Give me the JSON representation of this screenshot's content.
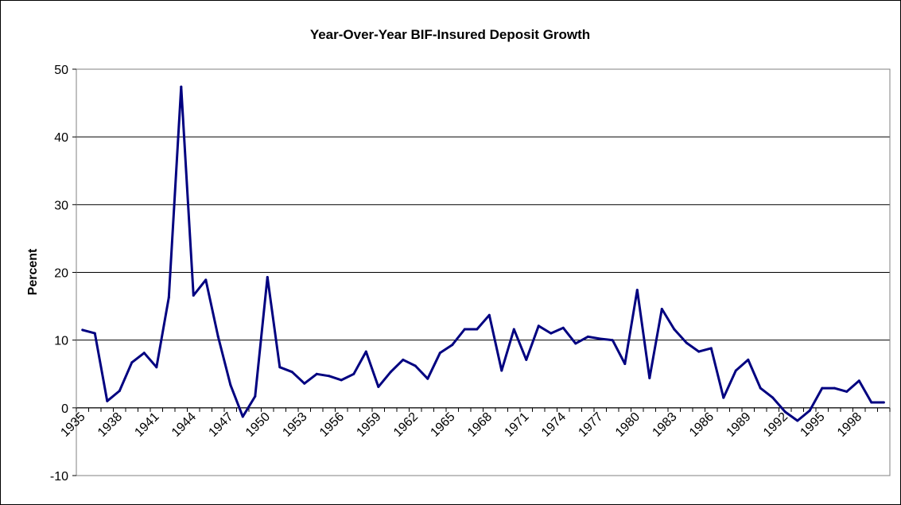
{
  "chart_data": {
    "type": "line",
    "title": "Year-Over-Year BIF-Insured Deposit Growth",
    "xlabel": "",
    "ylabel": "Percent",
    "ylim": [
      -10,
      50
    ],
    "yticks": [
      -10,
      0,
      10,
      20,
      30,
      40,
      50
    ],
    "xtick_labels": [
      "1935",
      "1938",
      "1941",
      "1944",
      "1947",
      "1950",
      "1953",
      "1956",
      "1959",
      "1962",
      "1965",
      "1968",
      "1971",
      "1974",
      "1977",
      "1980",
      "1983",
      "1986",
      "1989",
      "1992",
      "1995",
      "1998"
    ],
    "grid": "horizontal",
    "legend": "none",
    "line_color": "#000080",
    "x": [
      1935,
      1936,
      1937,
      1938,
      1939,
      1940,
      1941,
      1942,
      1943,
      1944,
      1945,
      1946,
      1947,
      1948,
      1949,
      1950,
      1951,
      1952,
      1953,
      1954,
      1955,
      1956,
      1957,
      1958,
      1959,
      1960,
      1961,
      1962,
      1963,
      1964,
      1965,
      1966,
      1967,
      1968,
      1969,
      1970,
      1971,
      1972,
      1973,
      1974,
      1975,
      1976,
      1977,
      1978,
      1979,
      1980,
      1981,
      1982,
      1983,
      1984,
      1985,
      1986,
      1987,
      1988,
      1989,
      1990,
      1991,
      1992,
      1993,
      1994,
      1995,
      1996,
      1997,
      1998,
      1999,
      2000
    ],
    "series": [
      {
        "values": [
          11.5,
          11.0,
          1.0,
          2.5,
          6.7,
          8.1,
          6.0,
          16.3,
          47.4,
          16.6,
          18.9,
          10.5,
          3.4,
          -1.3,
          1.7,
          19.3,
          6.0,
          5.3,
          3.6,
          5.0,
          4.7,
          4.1,
          5.0,
          8.3,
          3.1,
          5.3,
          7.1,
          6.2,
          4.3,
          8.1,
          9.3,
          11.6,
          11.6,
          13.7,
          5.5,
          11.6,
          7.1,
          12.1,
          11.0,
          11.8,
          9.5,
          10.5,
          10.2,
          10.0,
          6.5,
          17.4,
          4.4,
          14.6,
          11.6,
          9.6,
          8.3,
          8.8,
          1.5,
          5.5,
          7.1,
          2.9,
          1.5,
          -0.6,
          -1.9,
          -0.4,
          2.9,
          2.9,
          2.4,
          4.0,
          0.8,
          0.8
        ]
      }
    ]
  }
}
